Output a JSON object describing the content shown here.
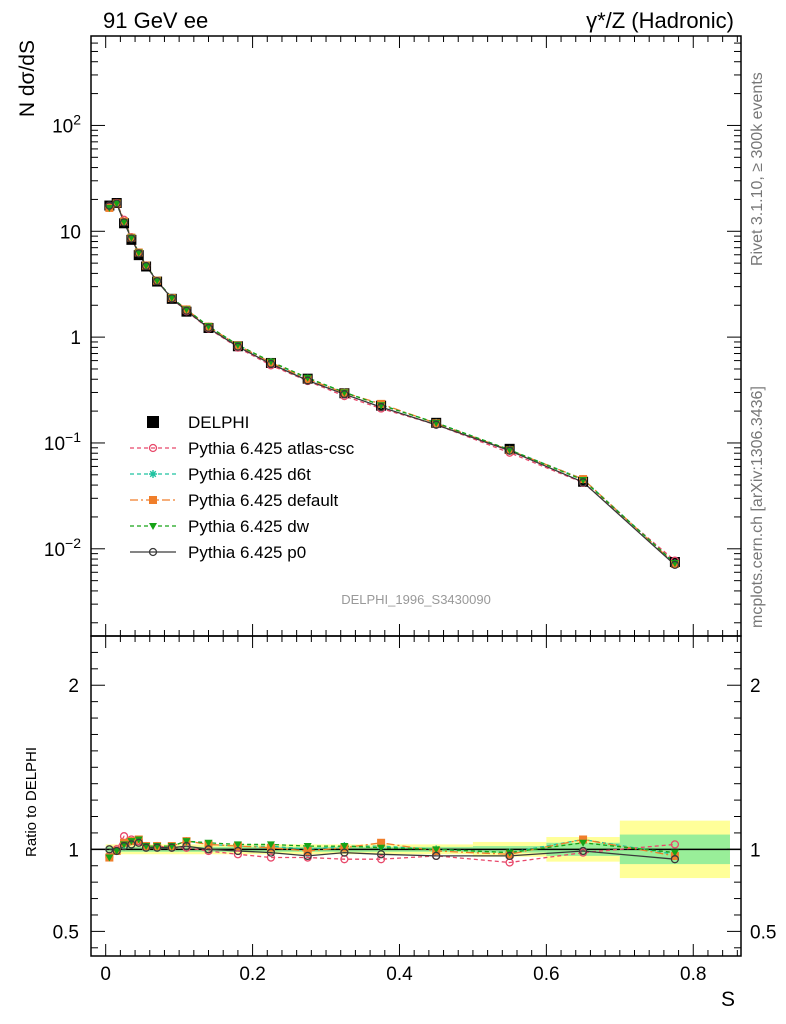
{
  "header": {
    "left": "91 GeV ee",
    "right": "γ*/Z (Hadronic)"
  },
  "side_labels": {
    "rivet": "Rivet 3.1.10, ≥ 300k events",
    "site": "mcplots.cern.ch [arXiv:1306.3436]"
  },
  "chart_data": {
    "type": "line",
    "analysis_label": "DELPHI_1996_S3430090",
    "xlabel": "S",
    "top_panel": {
      "ylabel": "N dσ/dS",
      "yscale": "log",
      "ylim": [
        0.0015,
        700
      ],
      "yticks": [
        {
          "value": 0.01,
          "base": "10",
          "exp": "−2"
        },
        {
          "value": 0.1,
          "base": "10",
          "exp": "−1"
        },
        {
          "value": 1,
          "base": "1",
          "exp": ""
        },
        {
          "value": 10,
          "base": "10",
          "exp": ""
        },
        {
          "value": 100,
          "base": "10",
          "exp": "2"
        }
      ]
    },
    "bottom_panel": {
      "ylabel": "Ratio to DELPHI",
      "ylim": [
        0.35,
        2.3
      ],
      "yticks": [
        0.5,
        1,
        2
      ],
      "data_band_inner": [
        {
          "x0": 0.0,
          "x1": 0.1,
          "half": 0.015
        },
        {
          "x0": 0.1,
          "x1": 0.2,
          "half": 0.015
        },
        {
          "x0": 0.2,
          "x1": 0.3,
          "half": 0.015
        },
        {
          "x0": 0.3,
          "x1": 0.4,
          "half": 0.015
        },
        {
          "x0": 0.4,
          "x1": 0.5,
          "half": 0.015
        },
        {
          "x0": 0.5,
          "x1": 0.6,
          "half": 0.02
        },
        {
          "x0": 0.6,
          "x1": 0.7,
          "half": 0.04
        },
        {
          "x0": 0.7,
          "x1": 0.85,
          "half": 0.09
        }
      ],
      "data_band_outer": [
        {
          "x0": 0.0,
          "x1": 0.1,
          "half": 0.03
        },
        {
          "x0": 0.1,
          "x1": 0.2,
          "half": 0.03
        },
        {
          "x0": 0.2,
          "x1": 0.3,
          "half": 0.03
        },
        {
          "x0": 0.3,
          "x1": 0.4,
          "half": 0.03
        },
        {
          "x0": 0.4,
          "x1": 0.5,
          "half": 0.03
        },
        {
          "x0": 0.5,
          "x1": 0.6,
          "half": 0.045
        },
        {
          "x0": 0.6,
          "x1": 0.7,
          "half": 0.075
        },
        {
          "x0": 0.7,
          "x1": 0.85,
          "half": 0.175
        }
      ]
    },
    "xlim": [
      -0.02,
      0.865
    ],
    "xticks": [
      0,
      0.2,
      0.4,
      0.6,
      0.8
    ],
    "x": [
      0.005,
      0.015,
      0.025,
      0.035,
      0.045,
      0.055,
      0.07,
      0.09,
      0.11,
      0.14,
      0.18,
      0.225,
      0.275,
      0.325,
      0.375,
      0.45,
      0.55,
      0.65,
      0.775
    ],
    "series": [
      {
        "name": "DELPHI",
        "color": "#000000",
        "marker": "square-filled",
        "dash": "none",
        "values": [
          17.5,
          18.5,
          11.9,
          8.3,
          5.95,
          4.65,
          3.35,
          2.3,
          1.74,
          1.22,
          0.82,
          0.57,
          0.405,
          0.295,
          0.225,
          0.155,
          0.088,
          0.043,
          0.0075
        ]
      },
      {
        "name": "Pythia 6.425 atlas-csc",
        "color": "#e8486a",
        "marker": "circle-open",
        "dash": "4,3",
        "ratio": [
          0.96,
          1.0,
          1.08,
          1.06,
          1.05,
          1.02,
          1.02,
          1.01,
          1.01,
          0.99,
          0.97,
          0.95,
          0.95,
          0.94,
          0.94,
          0.96,
          0.92,
          0.98,
          1.03
        ]
      },
      {
        "name": "Pythia 6.425 d6t",
        "color": "#1fc2a0",
        "marker": "asterisk",
        "dash": "4,3",
        "ratio": [
          0.95,
          0.99,
          1.03,
          1.05,
          1.06,
          1.02,
          1.02,
          1.02,
          1.05,
          1.03,
          1.02,
          1.02,
          1.0,
          1.02,
          1.02,
          1.0,
          0.98,
          1.06,
          0.97
        ]
      },
      {
        "name": "Pythia 6.425 default",
        "color": "#f07e2a",
        "marker": "square-filled",
        "dash": "8,3,2,3",
        "ratio": [
          0.95,
          0.99,
          1.04,
          1.05,
          1.06,
          1.02,
          1.02,
          1.02,
          1.05,
          1.03,
          1.02,
          1.01,
          0.99,
          1.01,
          1.04,
          0.99,
          0.97,
          1.06,
          0.96
        ]
      },
      {
        "name": "Pythia 6.425 dw",
        "color": "#17a317",
        "marker": "triangle-down",
        "dash": "4,3",
        "ratio": [
          0.95,
          0.99,
          1.03,
          1.05,
          1.06,
          1.02,
          1.02,
          1.02,
          1.05,
          1.04,
          1.03,
          1.03,
          1.02,
          1.02,
          1.01,
          1.0,
          0.98,
          1.04,
          0.98
        ]
      },
      {
        "name": "Pythia 6.425 p0",
        "color": "#3a3a3a",
        "marker": "circle-open",
        "dash": "none",
        "ratio": [
          1.0,
          0.99,
          1.02,
          1.03,
          1.04,
          1.01,
          1.01,
          1.01,
          1.02,
          1.0,
          0.99,
          0.98,
          0.96,
          0.98,
          0.97,
          0.96,
          0.96,
          0.99,
          0.94
        ]
      }
    ],
    "legend_position": "lower-left"
  }
}
